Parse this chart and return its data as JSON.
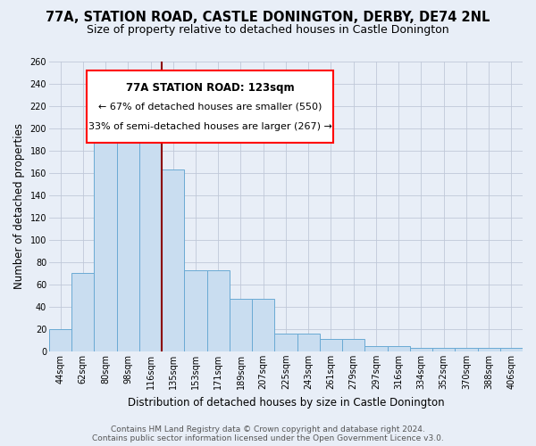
{
  "title": "77A, STATION ROAD, CASTLE DONINGTON, DERBY, DE74 2NL",
  "subtitle": "Size of property relative to detached houses in Castle Donington",
  "xlabel": "Distribution of detached houses by size in Castle Donington",
  "ylabel": "Number of detached properties",
  "bar_color": "#c9ddf0",
  "bar_edge_color": "#6aaad4",
  "categories": [
    "44sqm",
    "62sqm",
    "80sqm",
    "98sqm",
    "116sqm",
    "135sqm",
    "153sqm",
    "171sqm",
    "189sqm",
    "207sqm",
    "225sqm",
    "243sqm",
    "261sqm",
    "279sqm",
    "297sqm",
    "316sqm",
    "334sqm",
    "352sqm",
    "370sqm",
    "388sqm",
    "406sqm"
  ],
  "values": [
    20,
    70,
    193,
    193,
    213,
    163,
    73,
    73,
    47,
    47,
    16,
    16,
    11,
    11,
    5,
    5,
    3,
    3,
    3,
    3,
    3
  ],
  "ylim": [
    0,
    260
  ],
  "yticks": [
    0,
    20,
    40,
    60,
    80,
    100,
    120,
    140,
    160,
    180,
    200,
    220,
    240,
    260
  ],
  "red_line_x": 4.5,
  "annotation_title": "77A STATION ROAD: 123sqm",
  "annotation_line1": "← 67% of detached houses are smaller (550)",
  "annotation_line2": "33% of semi-detached houses are larger (267) →",
  "footer1": "Contains HM Land Registry data © Crown copyright and database right 2024.",
  "footer2": "Contains public sector information licensed under the Open Government Licence v3.0.",
  "bg_color": "#e8eef7",
  "title_fontsize": 10.5,
  "subtitle_fontsize": 9,
  "xlabel_fontsize": 8.5,
  "ylabel_fontsize": 8.5,
  "tick_fontsize": 7,
  "footer_fontsize": 6.5
}
